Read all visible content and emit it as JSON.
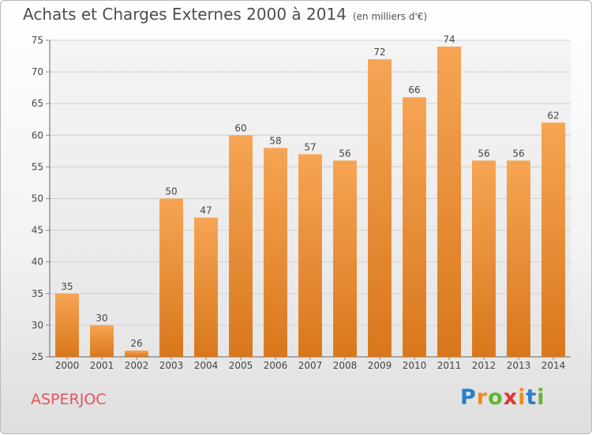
{
  "header": {
    "title": "Achats et Charges Externes 2000 à 2014",
    "unit": "(en milliers d'€)"
  },
  "location": "ASPERJOC",
  "logo": {
    "letters": [
      "P",
      "r",
      "o",
      "x",
      "i",
      "t",
      "i"
    ],
    "colors": [
      "#2a7fc9",
      "#f08a1c",
      "#63b330",
      "#e0342c",
      "#f08a1c",
      "#2a7fc9",
      "#63b330"
    ]
  },
  "chart_data": {
    "type": "bar",
    "categories": [
      "2000",
      "2001",
      "2002",
      "2003",
      "2004",
      "2005",
      "2006",
      "2007",
      "2008",
      "2009",
      "2010",
      "2011",
      "2012",
      "2013",
      "2014"
    ],
    "values": [
      35,
      30,
      26,
      50,
      47,
      60,
      58,
      57,
      56,
      72,
      66,
      74,
      56,
      56,
      62
    ],
    "ylim": [
      25,
      75
    ],
    "yticks": [
      25,
      30,
      35,
      40,
      45,
      50,
      55,
      60,
      65,
      70,
      75
    ],
    "grid": true,
    "bar_color_top": "#f6a554",
    "bar_color_bottom": "#d9771c"
  }
}
